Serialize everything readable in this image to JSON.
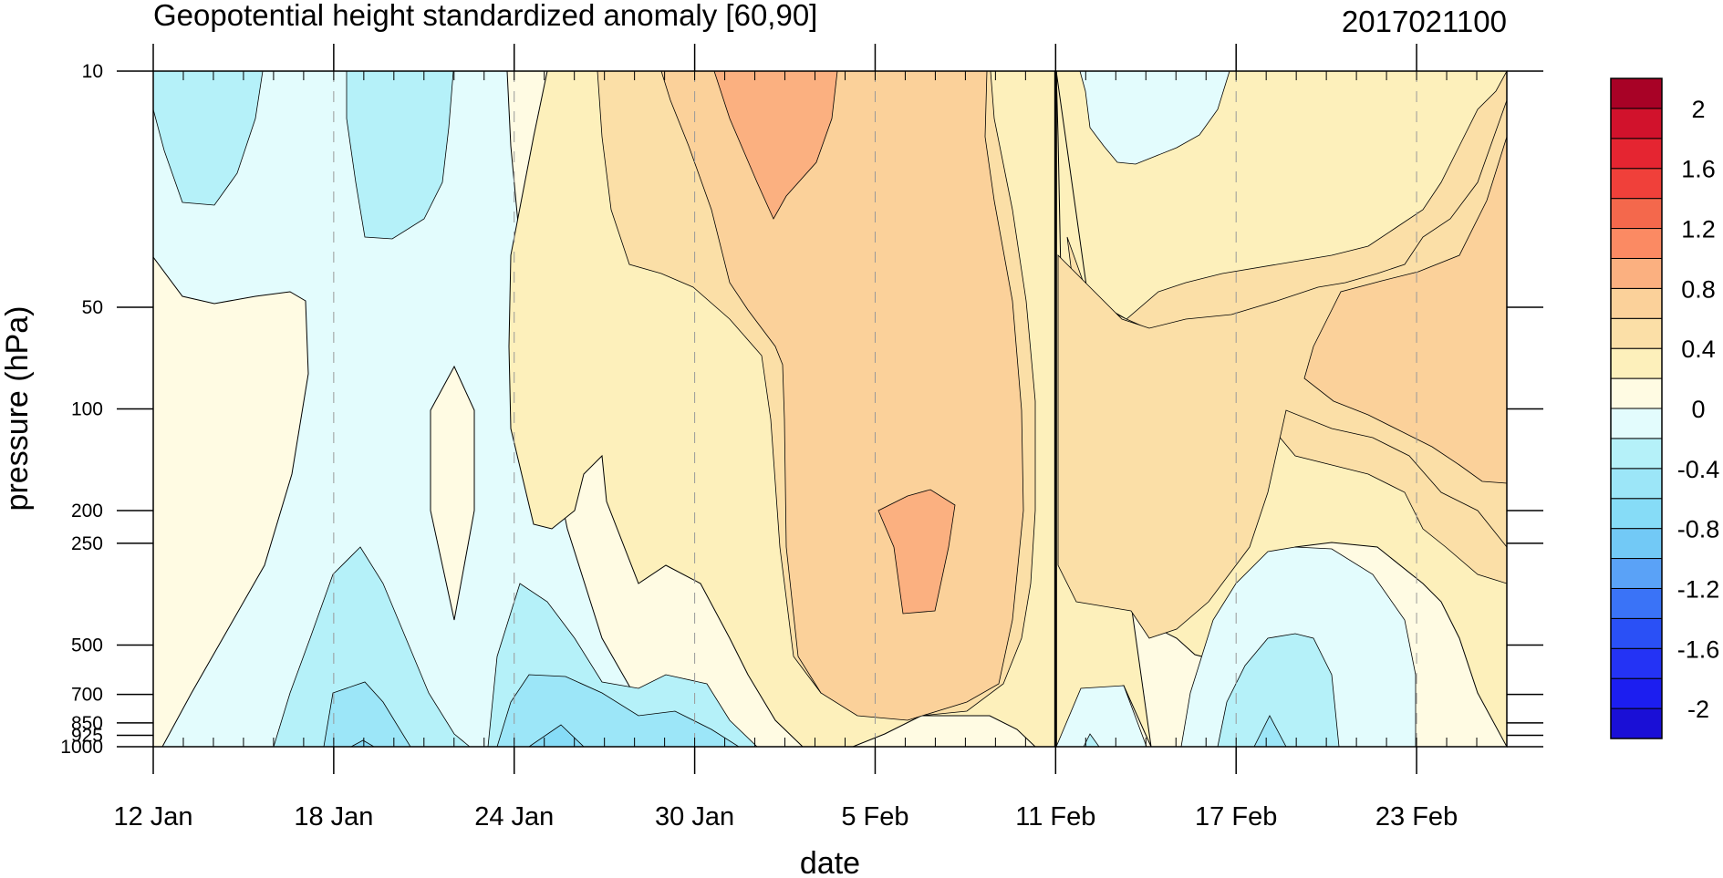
{
  "chart_data": {
    "type": "heatmap",
    "title": "Geopotential height standardized anomaly [60,90]",
    "date_stamp": "2017021100",
    "xlabel": "date",
    "ylabel": "pressure (hPa)",
    "x_ticks": [
      "12 Jan",
      "18 Jan",
      "24 Jan",
      "30 Jan",
      "5 Feb",
      "11 Feb",
      "17 Feb",
      "23 Feb"
    ],
    "y_ticks": [
      "10",
      "50",
      "100",
      "200",
      "250",
      "500",
      "700",
      "850",
      "925",
      "1000"
    ],
    "y_levels_hPa": [
      10,
      50,
      100,
      200,
      250,
      500,
      700,
      850,
      925,
      1000
    ],
    "y_scale": "log",
    "x_range": [
      "12 Jan 2017",
      "26 Feb 2017"
    ],
    "y_range": [
      10,
      1000
    ],
    "marker_date": "11 Feb",
    "colorbar": {
      "labels": [
        "2",
        "1.6",
        "1.2",
        "0.8",
        "0.4",
        "0",
        "-0.4",
        "-0.8",
        "-1.2",
        "-1.6",
        "-2"
      ],
      "boundaries": [
        -2.2,
        -2.0,
        -1.8,
        -1.6,
        -1.4,
        -1.2,
        -1.0,
        -0.8,
        -0.6,
        -0.4,
        -0.2,
        0.0,
        0.2,
        0.4,
        0.6,
        0.8,
        1.0,
        1.2,
        1.4,
        1.6,
        1.8,
        2.0,
        2.2
      ],
      "colors": [
        "#1a0fd6",
        "#1c1ef0",
        "#2433f5",
        "#2a50f6",
        "#3a73f7",
        "#5aa2f7",
        "#72c9f6",
        "#86dcf7",
        "#9ce6f8",
        "#b5f1f9",
        "#e3fcfd",
        "#fffbe3",
        "#fdf0bb",
        "#fbdfa7",
        "#fbd19a",
        "#fbb080",
        "#fb8a63",
        "#f4684c",
        "#f0403a",
        "#e52531",
        "#d1122c",
        "#a80226"
      ]
    },
    "contour_colors": {
      "-0.8": "#86dcf7",
      "-0.6": "#9ce6f8",
      "-0.4": "#b5f1f9",
      "-0.2": "#e3fcfd",
      "0": "#fffbe3",
      "0.2": "#fdf0bb",
      "0.4": "#fbdfa7",
      "0.6": "#fbd19a",
      "0.8": "#fbb080"
    }
  }
}
